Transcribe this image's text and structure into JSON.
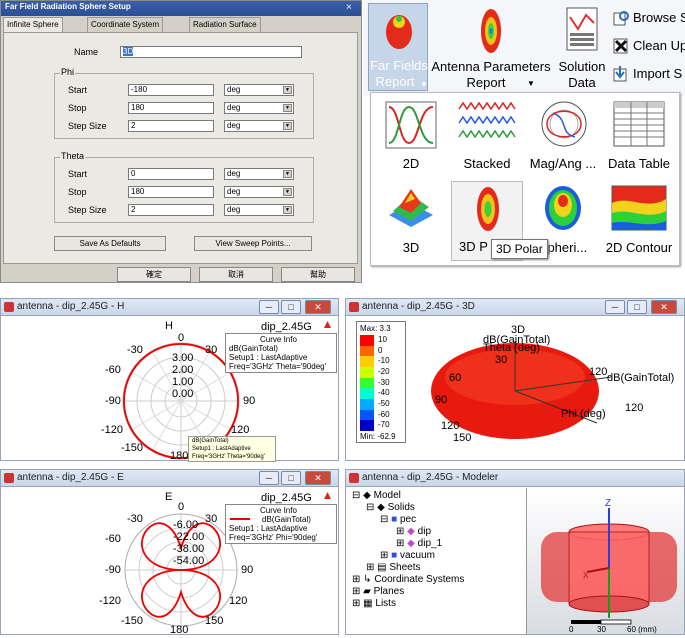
{
  "dialog": {
    "title": "Far Field Radiation Sphere Setup",
    "close": "×",
    "tabs": [
      "Infinite Sphere",
      "Coordinate System",
      "Radiation Surface"
    ],
    "name_label": "Name",
    "name_value": "3D",
    "phi_group": "Phi",
    "theta_group": "Theta",
    "start_label": "Start",
    "stop_label": "Stop",
    "step_label": "Step Size",
    "phi": {
      "start": "-180",
      "stop": "180",
      "step": "2",
      "unit": "deg"
    },
    "theta": {
      "start": "0",
      "stop": "180",
      "step": "2",
      "unit": "deg"
    },
    "save_defaults": "Save As Defaults",
    "view_sweep": "View Sweep Points...",
    "ok": "確定",
    "cancel": "取消",
    "help": "幫助"
  },
  "ribbon": {
    "far_fields": {
      "line1": "Far Fields",
      "line2": "Report"
    },
    "antenna_params": {
      "line1": "Antenna Parameters",
      "line2": "Report"
    },
    "solution_data": {
      "line1": "Solution",
      "line2": "Data"
    },
    "browse": "Browse S",
    "cleanup": "Clean Up",
    "import": "Import S",
    "gallery": [
      "2D",
      "Stacked",
      "Mag/Ang ...",
      "Data Table",
      "3D",
      "3D P",
      "Spheri...",
      "2D Contour"
    ],
    "tooltip": "3D Polar"
  },
  "win_h": {
    "title": "antenna - dip_2.45G - H",
    "plot_title": "H",
    "legend_name": "dip_2.45G",
    "curve_info_title": "Curve Info",
    "curve_label": "dB(GainTotal)",
    "curve_setup": "Setup1 : LastAdaptive",
    "curve_freq": "Freq='3GHz' Theta='90deg'",
    "angle_labels": [
      "0",
      "30",
      "-30",
      "60",
      "-60",
      "90",
      "-90",
      "120",
      "-120",
      "150",
      "-150",
      "180"
    ],
    "radial_labels": [
      "3.00",
      "2.00",
      "1.00",
      "0.00"
    ],
    "tip_label": "dB(GainTotal)",
    "tip_setup": "Setup1 : LastAdaptive",
    "tip_freq": "Freq='3GHz' Theta='90deg'"
  },
  "win_3d": {
    "title": "antenna - dip_2.45G - 3D",
    "plot_title": "3D",
    "max_label": "Max: 3.3",
    "min_label": "Min: -62.9",
    "scale": [
      "10",
      "0",
      "-10",
      "-20",
      "-30",
      "-40",
      "-50",
      "-60",
      "-70"
    ],
    "scale_colors": [
      "#ff0000",
      "#ff6600",
      "#ffcc00",
      "#ccff00",
      "#33ff33",
      "#00ffcc",
      "#00aaff",
      "#0055ff",
      "#0000cc"
    ],
    "label_gain_top": "dB(GainTotal)",
    "label_theta": "Theta (deg)",
    "label_gain_right": "dB(GainTotal)",
    "label_phi": "Phi (deg)",
    "ticks": [
      "30",
      "60",
      "90",
      "120",
      "150",
      "120",
      "120"
    ]
  },
  "win_e": {
    "title": "antenna - dip_2.45G - E",
    "plot_title": "E",
    "legend_name": "dip_2.45G",
    "curve_info_title": "Curve Info",
    "curve_label": "dB(GainTotal)",
    "curve_setup": "Setup1 : LastAdaptive",
    "curve_freq": "Freq='3GHz' Phi='90deg'",
    "angle_labels": [
      "0",
      "30",
      "-30",
      "60",
      "-60",
      "90",
      "-90",
      "120",
      "-120",
      "150",
      "-150",
      "180"
    ],
    "radial_labels": [
      "-6.00",
      "-22.00",
      "-38.00",
      "-54.00"
    ]
  },
  "win_model": {
    "title": "antenna - dip_2.45G - Modeler",
    "tree": [
      "Model",
      "Solids",
      "pec",
      "dip",
      "dip_1",
      "vacuum",
      "Sheets",
      "Coordinate Systems",
      "Planes",
      "Lists"
    ],
    "axis_z": "Z",
    "axis_x": "X",
    "scale": [
      "0",
      "30",
      "60 (mm)"
    ]
  }
}
